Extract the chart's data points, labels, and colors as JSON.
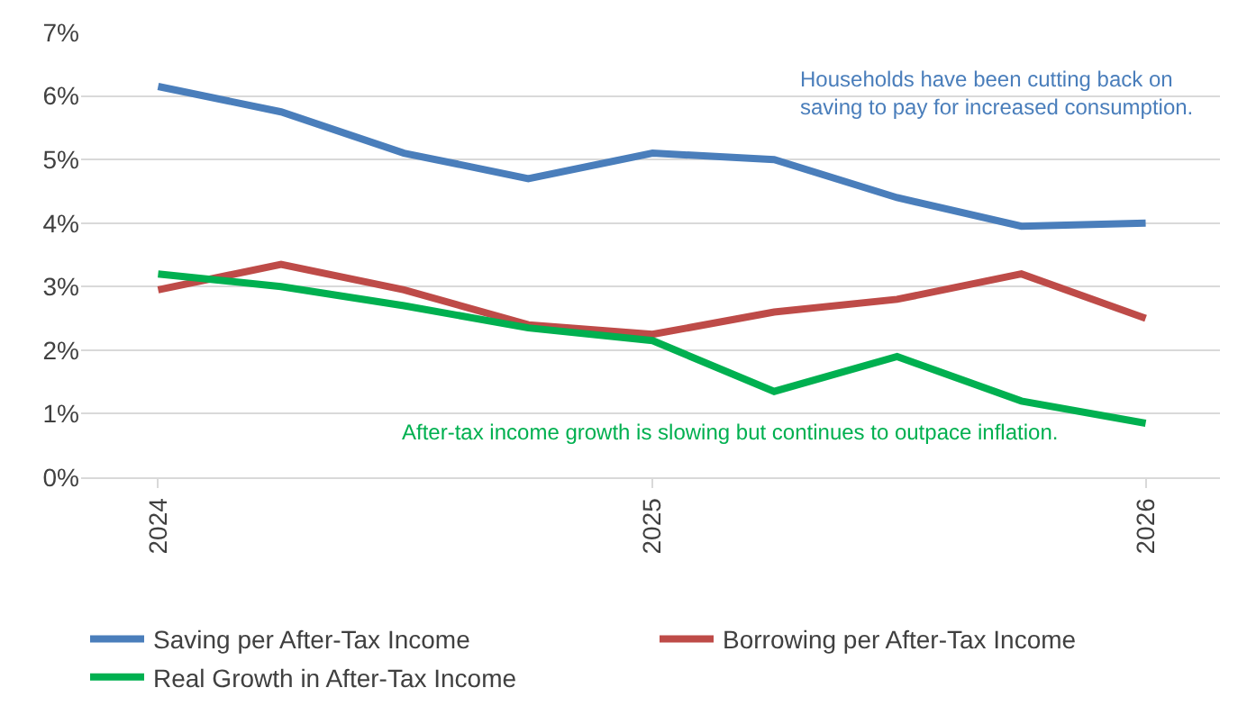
{
  "chart_data": {
    "type": "line",
    "x": [
      "2024-01-01",
      "2024-04-01",
      "2024-07-01",
      "2024-10-01",
      "2025-01-01",
      "2025-04-01",
      "2025-07-01",
      "2025-10-01",
      "2026-01-01"
    ],
    "series": [
      {
        "name": "Saving per After-Tax Income",
        "color": "#4a7ebb",
        "values": [
          6.15,
          5.75,
          5.1,
          4.7,
          5.1,
          5.0,
          4.4,
          3.95,
          4.0
        ]
      },
      {
        "name": "Borrowing per After-Tax Income",
        "color": "#be4b48",
        "values": [
          2.95,
          3.35,
          2.95,
          2.4,
          2.25,
          2.6,
          2.8,
          3.2,
          2.5
        ]
      },
      {
        "name": "Real Growth in After-Tax Income",
        "color": "#00b050",
        "values": [
          3.2,
          3.0,
          2.7,
          2.35,
          2.15,
          1.35,
          1.9,
          1.2,
          0.85
        ]
      }
    ],
    "ylim": [
      0,
      7
    ],
    "yticks": [
      {
        "value": 0,
        "label": "0%"
      },
      {
        "value": 1,
        "label": "1%"
      },
      {
        "value": 2,
        "label": "2%"
      },
      {
        "value": 3,
        "label": "3%"
      },
      {
        "value": 4,
        "label": "4%"
      },
      {
        "value": 5,
        "label": "5%"
      },
      {
        "value": 6,
        "label": "6%"
      },
      {
        "value": 7,
        "label": "7%"
      }
    ],
    "xlim": [
      "2023-11-05",
      "2026-02-25"
    ],
    "xticks": [
      {
        "value": "2024-01-01",
        "label": "2024"
      },
      {
        "value": "2025-01-01",
        "label": "2025"
      },
      {
        "value": "2026-01-01",
        "label": "2026"
      }
    ],
    "annotations": [
      "Households have been cutting back on\nsaving to pay for increased consumption.",
      "After-tax income growth is slowing but continues to outpace inflation."
    ],
    "grid": "y",
    "legend": "bottom",
    "marker": "none",
    "line_style": "solid"
  }
}
